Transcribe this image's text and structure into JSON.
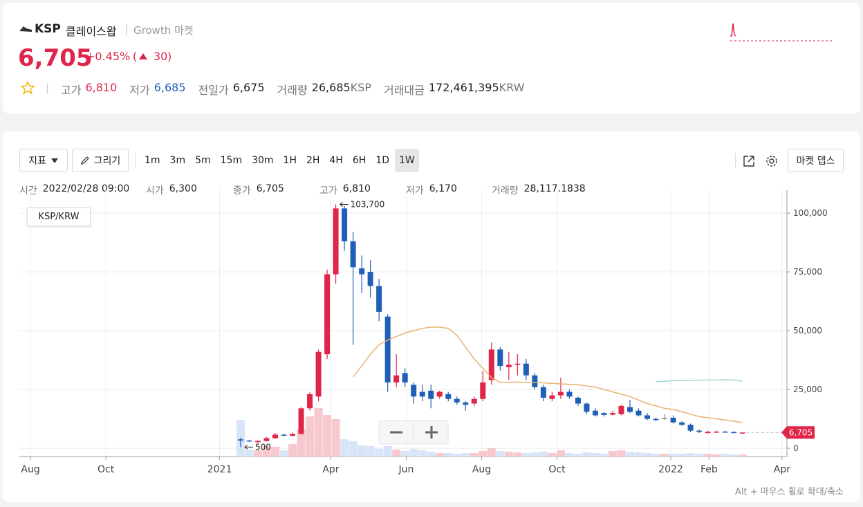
{
  "header": {
    "symbol": "KSP",
    "name": "클레이스왑",
    "market": "Growth 마켓",
    "price": "6,705",
    "change_pct": "+0.45%",
    "change": "30",
    "stats": [
      {
        "label": "고가",
        "value": "6,810",
        "color": "#e0254a"
      },
      {
        "label": "저가",
        "value": "6,685",
        "color": "#1f5fb8"
      },
      {
        "label": "전일가",
        "value": "6,675"
      },
      {
        "label": "거래량",
        "value": "26,685",
        "unit": "KSP"
      },
      {
        "label": "거래대금",
        "value": "172,461,395",
        "unit": "KRW"
      }
    ]
  },
  "toolbar": {
    "indicator": "지표",
    "draw": "그리기",
    "intervals": [
      "1m",
      "3m",
      "5m",
      "15m",
      "30m",
      "1H",
      "2H",
      "4H",
      "6H",
      "1D",
      "1W"
    ],
    "active_interval": "1W",
    "depth": "마켓 뎁스"
  },
  "ohlc_info": [
    {
      "label": "시간",
      "value": "2022/02/28 09:00"
    },
    {
      "label": "시가",
      "value": "6,300"
    },
    {
      "label": "종가",
      "value": "6,705"
    },
    {
      "label": "고가",
      "value": "6,810"
    },
    {
      "label": "저가",
      "value": "6,170"
    },
    {
      "label": "거래량",
      "value": "28,117.1838"
    }
  ],
  "chart_data": {
    "type": "candlestick",
    "pair_label": "KSP/KRW",
    "x": [
      "2021-01-18",
      "2021-01-25",
      "2021-02-01",
      "2021-02-08",
      "2021-02-15",
      "2021-02-22",
      "2021-03-01",
      "2021-03-08",
      "2021-03-15",
      "2021-03-22",
      "2021-03-29",
      "2021-04-05",
      "2021-04-12",
      "2021-04-19",
      "2021-04-26",
      "2021-05-03",
      "2021-05-10",
      "2021-05-17",
      "2021-05-24",
      "2021-05-31",
      "2021-06-07",
      "2021-06-14",
      "2021-06-21",
      "2021-06-28",
      "2021-07-05",
      "2021-07-12",
      "2021-07-19",
      "2021-07-26",
      "2021-08-02",
      "2021-08-09",
      "2021-08-16",
      "2021-08-23",
      "2021-08-30",
      "2021-09-06",
      "2021-09-13",
      "2021-09-20",
      "2021-09-27",
      "2021-10-04",
      "2021-10-11",
      "2021-10-18",
      "2021-10-25",
      "2021-11-01",
      "2021-11-08",
      "2021-11-15",
      "2021-11-22",
      "2021-11-29",
      "2021-12-06",
      "2021-12-13",
      "2021-12-20",
      "2021-12-27",
      "2022-01-03",
      "2022-01-10",
      "2022-01-17",
      "2022-01-24",
      "2022-01-31",
      "2022-02-07",
      "2022-02-14",
      "2022-02-21",
      "2022-02-28"
    ],
    "open": [
      3800,
      3300,
      2600,
      3100,
      4300,
      5800,
      5300,
      6100,
      17000,
      22000,
      40000,
      74000,
      102000,
      88000,
      76500,
      75000,
      69000,
      56000,
      28000,
      32000,
      27000,
      24000,
      24500,
      22000,
      23000,
      21000,
      19500,
      19000,
      21000,
      29000,
      42000,
      34500,
      35500,
      36000,
      31000,
      26000,
      21000,
      22500,
      24000,
      21500,
      19000,
      16000,
      15000,
      14300,
      14500,
      17500,
      16000,
      14000,
      12500,
      12900,
      13000,
      11000,
      10000,
      7500,
      6500,
      6800,
      7100,
      6900,
      6300
    ],
    "high": [
      4500,
      3600,
      3400,
      4800,
      6500,
      6200,
      6600,
      17500,
      24000,
      42000,
      76000,
      103700,
      103000,
      92000,
      82000,
      80000,
      72000,
      57000,
      40000,
      34000,
      28000,
      27000,
      27000,
      24500,
      24000,
      22000,
      20000,
      22000,
      33000,
      45000,
      43000,
      41000,
      40000,
      38000,
      32000,
      27000,
      24000,
      30000,
      25000,
      22000,
      19500,
      17000,
      15500,
      16000,
      18500,
      20500,
      17000,
      15000,
      13000,
      14500,
      14000,
      11500,
      10500,
      8000,
      7500,
      7500,
      7400,
      7200,
      6810
    ],
    "low": [
      500,
      2800,
      2300,
      2900,
      4000,
      5000,
      5000,
      5800,
      16000,
      20000,
      38000,
      70000,
      84000,
      44000,
      66000,
      64000,
      54000,
      24000,
      26000,
      26000,
      19000,
      20000,
      17000,
      21000,
      20000,
      18500,
      16000,
      18000,
      20000,
      27000,
      33000,
      29000,
      31000,
      29000,
      25000,
      20000,
      20000,
      21000,
      21000,
      18000,
      14500,
      13500,
      13500,
      14000,
      14000,
      15000,
      13500,
      12000,
      11500,
      12000,
      10500,
      9500,
      6800,
      6500,
      6200,
      6500,
      6600,
      6300,
      6170
    ],
    "close": [
      3300,
      3000,
      3100,
      4300,
      5800,
      5400,
      6100,
      17000,
      23000,
      41000,
      74000,
      102000,
      88000,
      77000,
      74000,
      69000,
      58000,
      28000,
      31000,
      28000,
      22000,
      22000,
      21000,
      24000,
      21000,
      19500,
      18500,
      21000,
      28000,
      42000,
      35000,
      35500,
      36000,
      31000,
      26000,
      21500,
      22500,
      24000,
      22000,
      19000,
      15500,
      14000,
      14200,
      15000,
      18000,
      15500,
      14000,
      12500,
      12000,
      12900,
      11000,
      10000,
      7500,
      7000,
      7000,
      7100,
      6800,
      6700,
      6705
    ],
    "volume": [
      530000,
      100000,
      90000,
      150000,
      140000,
      90000,
      180000,
      400000,
      580000,
      700000,
      600000,
      540000,
      250000,
      220000,
      160000,
      150000,
      110000,
      150000,
      100000,
      80000,
      110000,
      90000,
      70000,
      50000,
      50000,
      40000,
      50000,
      50000,
      80000,
      120000,
      80000,
      70000,
      60000,
      50000,
      60000,
      70000,
      50000,
      90000,
      50000,
      40000,
      60000,
      50000,
      40000,
      80000,
      90000,
      70000,
      60000,
      50000,
      40000,
      40000,
      40000,
      40000,
      50000,
      40000,
      40000,
      30000,
      40000,
      30000,
      28117.1838
    ],
    "volume_ylim": [
      0,
      900000
    ],
    "lines": [
      {
        "color": "#e8b36f",
        "values": [
          null,
          null,
          null,
          null,
          null,
          null,
          null,
          null,
          null,
          null,
          null,
          null,
          null,
          30300,
          35000,
          40000,
          44000,
          46000,
          47500,
          49000,
          50000,
          51000,
          51500,
          51500,
          51000,
          48000,
          43000,
          38000,
          34000,
          30000,
          28000,
          28000,
          28200,
          28000,
          28000,
          27800,
          27600,
          27400,
          27200,
          27000,
          26500,
          26000,
          25000,
          24000,
          23000,
          22000,
          20500,
          19000,
          18000,
          17000,
          16500,
          15500,
          14500,
          13500,
          13000,
          12500,
          12000,
          11500,
          11000
        ]
      },
      {
        "color": "#9fdad6",
        "values": [
          null,
          null,
          null,
          null,
          null,
          null,
          null,
          null,
          null,
          null,
          null,
          null,
          null,
          null,
          null,
          null,
          null,
          null,
          null,
          null,
          null,
          null,
          null,
          null,
          null,
          null,
          null,
          null,
          null,
          null,
          null,
          null,
          null,
          null,
          null,
          null,
          null,
          null,
          null,
          null,
          null,
          null,
          null,
          null,
          null,
          null,
          null,
          null,
          28300,
          28500,
          28700,
          28800,
          28900,
          29000,
          29000,
          29000,
          29100,
          29000,
          28500
        ]
      }
    ],
    "up_color": "#e0254a",
    "down_color": "#1f5fb8",
    "flat_color": "#888888",
    "volume_up_color": "#f7c9cf",
    "volume_down_color": "#d8e4f8",
    "xlim": [
      "2020-07-23",
      "2022-04-05"
    ],
    "xticks": [
      {
        "value": "2020-08-01",
        "label": "Aug"
      },
      {
        "value": "2020-10-01",
        "label": "Oct"
      },
      {
        "value": "2021-01-01",
        "label": "2021"
      },
      {
        "value": "2021-04-01",
        "label": "Apr"
      },
      {
        "value": "2021-06-01",
        "label": "Jun"
      },
      {
        "value": "2021-08-01",
        "label": "Aug"
      },
      {
        "value": "2021-10-01",
        "label": "Oct"
      },
      {
        "value": "2022-01-01",
        "label": "2022"
      },
      {
        "value": "2022-02-01",
        "label": "Feb"
      },
      {
        "value": "2022-04-01",
        "label": "Apr"
      }
    ],
    "ylim": [
      -3500,
      106800
    ],
    "yticks": [
      0,
      {
        "value": 25000,
        "label": "25,000"
      },
      {
        "value": 50000,
        "label": "50,000"
      },
      {
        "value": 75000,
        "label": "75,000"
      },
      {
        "value": 100000,
        "label": "100,000"
      }
    ],
    "grid": true,
    "annotations": [
      {
        "value": 103700,
        "label": "103,700",
        "at": "high"
      },
      {
        "value": 500,
        "label": "500",
        "at": "low"
      }
    ],
    "price_tag": {
      "value": 6705,
      "label": "6,705"
    }
  },
  "hint": "Alt + 마우스 휠로 확대/축소"
}
